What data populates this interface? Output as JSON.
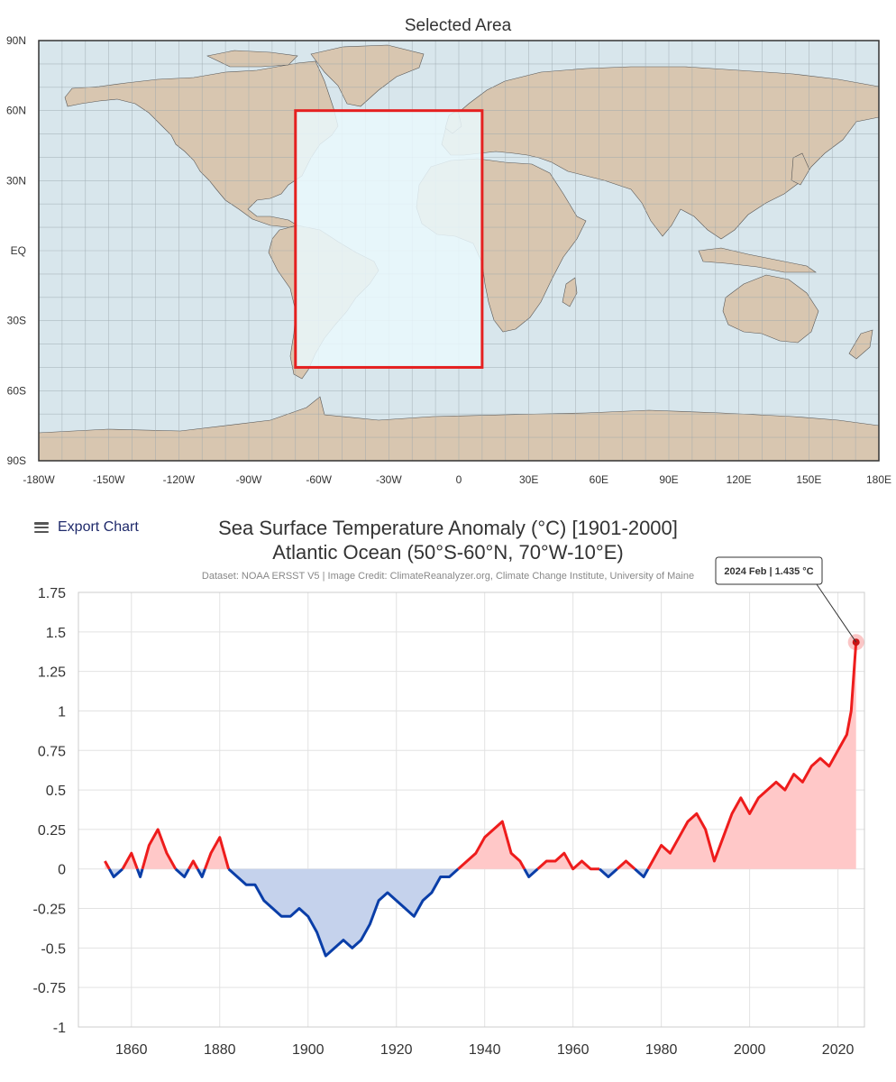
{
  "map": {
    "title": "Selected Area",
    "lat_labels": [
      "90N",
      "60N",
      "30N",
      "EQ",
      "30S",
      "60S",
      "90S"
    ],
    "lon_labels": [
      "-180W",
      "-150W",
      "-120W",
      "-90W",
      "-60W",
      "-30W",
      "0",
      "30E",
      "60E",
      "90E",
      "120E",
      "150E",
      "180E"
    ],
    "selected_region": {
      "lon_min": -70,
      "lon_max": 10,
      "lat_min": -50,
      "lat_max": 60
    },
    "colors": {
      "ocean": "#d8e6ec",
      "land": "#d8c6b0",
      "selection_fill": "#eaf8fd",
      "selection_border": "#e52020",
      "grid": "#9aa6ad"
    }
  },
  "toolbar": {
    "export_label": "Export Chart"
  },
  "header": {
    "title_line1": "Sea Surface Temperature Anomaly (°C) [1901-2000]",
    "title_line2": "Atlantic Ocean (50°S-60°N, 70°W-10°E)",
    "credit": "Dataset: NOAA ERSST V5 | Image Credit: ClimateReanalyzer.org, Climate Change Institute, University of Maine"
  },
  "tooltip": {
    "label": "2024 Feb | 1.435 °C"
  },
  "chart_data": {
    "type": "area",
    "title": "Sea Surface Temperature Anomaly (°C) [1901-2000]",
    "subtitle": "Atlantic Ocean (50°S-60°N, 70°W-10°E)",
    "xlim": [
      1848,
      2026
    ],
    "ylim": [
      -1,
      1.75
    ],
    "x_ticks": [
      1860,
      1880,
      1900,
      1920,
      1940,
      1960,
      1980,
      2000,
      2020
    ],
    "y_ticks": [
      -1,
      -0.75,
      -0.5,
      -0.25,
      0,
      0.25,
      0.5,
      0.75,
      1,
      1.25,
      1.5,
      1.75
    ],
    "y_tick_labels": [
      "-1",
      "-0.75",
      "-0.5",
      "-0.25",
      "0",
      "0.25",
      "0.5",
      "0.75",
      "1",
      "1.25",
      "1.5",
      "1.75"
    ],
    "positive_color": "#ee1c1c",
    "negative_color": "#0a3ea8",
    "positive_fill": "#ffc8c8",
    "negative_fill": "#c5d2ec",
    "highlight": {
      "x": 2024.1,
      "y": 1.435
    },
    "series": [
      {
        "x": [
          1854,
          1856,
          1858,
          1860,
          1862,
          1864,
          1866,
          1868,
          1870,
          1872,
          1874,
          1876,
          1878,
          1880,
          1882,
          1884,
          1886,
          1888,
          1890,
          1892,
          1894,
          1896,
          1898,
          1900,
          1902,
          1904,
          1906,
          1908,
          1910,
          1912,
          1914,
          1916,
          1918,
          1920,
          1922,
          1924,
          1926,
          1928,
          1930,
          1932,
          1934,
          1936,
          1938,
          1940,
          1942,
          1944,
          1946,
          1948,
          1950,
          1952,
          1954,
          1956,
          1958,
          1960,
          1962,
          1964,
          1966,
          1968,
          1970,
          1972,
          1974,
          1976,
          1978,
          1980,
          1982,
          1984,
          1986,
          1988,
          1990,
          1992,
          1994,
          1996,
          1998,
          2000,
          2002,
          2004,
          2006,
          2008,
          2010,
          2012,
          2014,
          2016,
          2018,
          2020,
          2022,
          2023,
          2023.5,
          2024.1
        ],
        "values": [
          0.05,
          -0.05,
          0.0,
          0.1,
          -0.05,
          0.15,
          0.25,
          0.1,
          0.0,
          -0.05,
          0.05,
          -0.05,
          0.1,
          0.2,
          0.0,
          -0.05,
          -0.1,
          -0.1,
          -0.2,
          -0.25,
          -0.3,
          -0.3,
          -0.25,
          -0.3,
          -0.4,
          -0.55,
          -0.5,
          -0.45,
          -0.5,
          -0.45,
          -0.35,
          -0.2,
          -0.15,
          -0.2,
          -0.25,
          -0.3,
          -0.2,
          -0.15,
          -0.05,
          -0.05,
          0.0,
          0.05,
          0.1,
          0.2,
          0.25,
          0.3,
          0.1,
          0.05,
          -0.05,
          0.0,
          0.05,
          0.05,
          0.1,
          0.0,
          0.05,
          0.0,
          0.0,
          -0.05,
          0.0,
          0.05,
          0.0,
          -0.05,
          0.05,
          0.15,
          0.1,
          0.2,
          0.3,
          0.35,
          0.25,
          0.05,
          0.2,
          0.35,
          0.45,
          0.35,
          0.45,
          0.5,
          0.55,
          0.5,
          0.6,
          0.55,
          0.65,
          0.7,
          0.65,
          0.75,
          0.85,
          1.0,
          1.2,
          1.435
        ]
      }
    ]
  }
}
